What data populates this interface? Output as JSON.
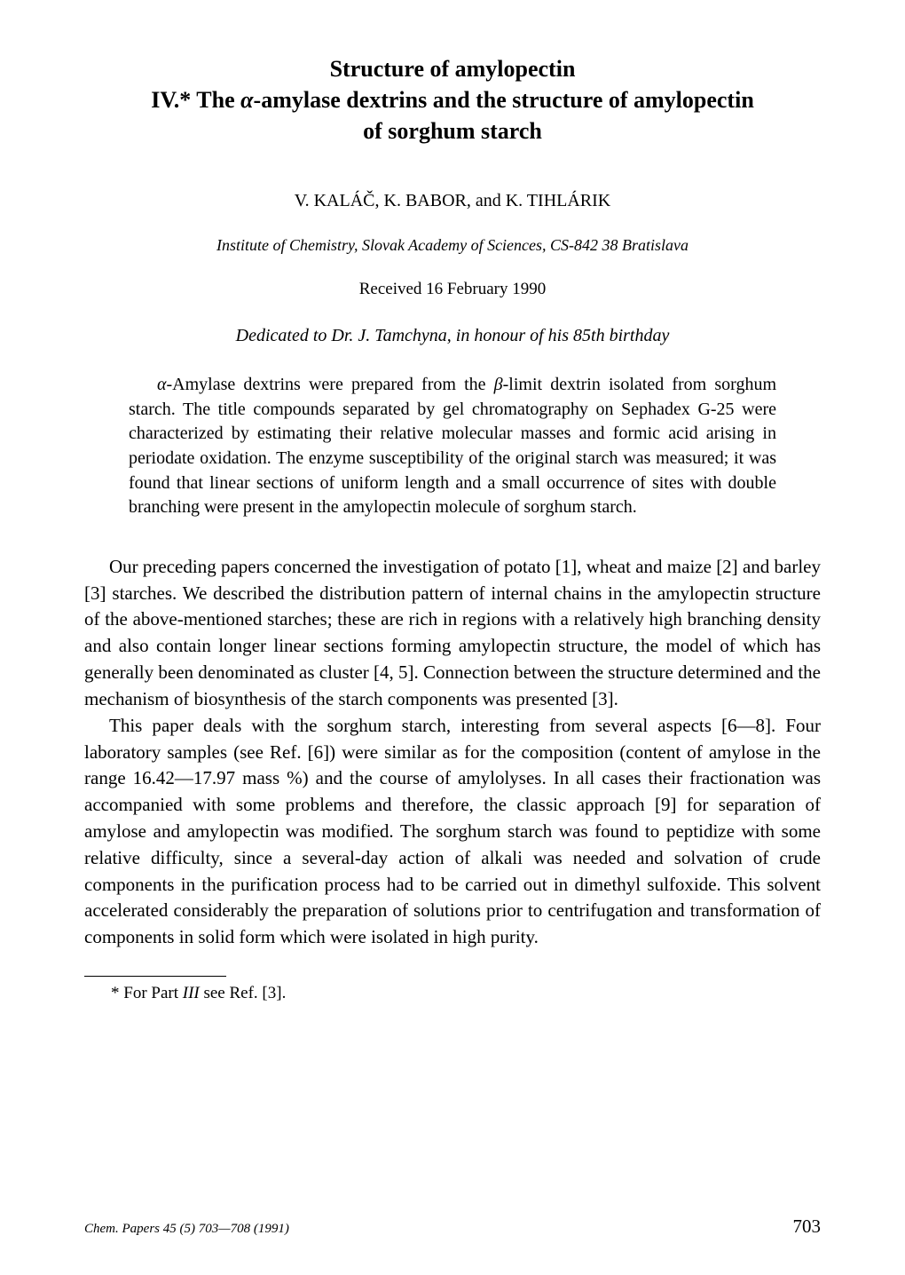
{
  "title": {
    "line1": "Structure of amylopectin",
    "line2_prefix": "IV.* The ",
    "line2_alpha": "α",
    "line2_rest": "-amylase dextrins and the structure of amylopectin",
    "line3": "of sorghum starch"
  },
  "authors": "V. KALÁČ, K. BABOR, and K. TIHLÁRIK",
  "affiliation": "Institute of Chemistry, Slovak Academy of Sciences, CS-842 38 Bratislava",
  "received": "Received 16 February 1990",
  "dedication": "Dedicated to Dr. J. Tamchyna, in honour of his 85th birthday",
  "abstract": {
    "alpha": "α",
    "text1": "-Amylase dextrins were prepared from the ",
    "beta": "β",
    "text2": "-limit dextrin isolated from sorghum starch. The title compounds separated by gel chromatography on Sephadex G-25 were characterized by estimating their relative molecular masses and formic acid arising in periodate oxidation. The enzyme susceptibility of the original starch was measured; it was found that linear sections of uniform length and a small occurrence of sites with double branching were present in the amylopectin molecule of sorghum starch."
  },
  "body": {
    "p1": "Our preceding papers concerned the investigation of potato [1], wheat and maize [2] and barley [3] starches. We described the distribution pattern of internal chains in the amylopectin structure of the above-mentioned starches; these are rich in regions with a relatively high branching density and also contain longer linear sections forming amylopectin structure, the model of which has generally been denominated as cluster [4, 5]. Connection between the structure determined and the mechanism of biosynthesis of the starch components was presented [3].",
    "p2": "This paper deals with the sorghum starch, interesting from several aspects [6—8]. Four laboratory samples (see Ref. [6]) were similar as for the composition (content of amylose in the range 16.42—17.97 mass %) and the course of amylolyses. In all cases their fractionation was accompanied with some problems and therefore, the classic approach [9] for separation of amylose and amylopectin was modified. The sorghum starch was found to peptidize with some relative difficulty, since a several-day action of alkali was needed and solvation of crude components in the purification process had to be carried out in dimethyl sulfoxide. This solvent accelerated considerably the preparation of solutions prior to centrifugation and transformation of components in solid form which were isolated in high purity."
  },
  "footnote": {
    "prefix": "* For Part ",
    "part": "III",
    "suffix": " see Ref. [3]."
  },
  "footer": {
    "journal_prefix": "Chem. Papers ",
    "journal_vol": "45",
    "journal_rest": " (5) 703—708 (1991)",
    "page": "703"
  },
  "style": {
    "page_bg": "#ffffff",
    "text_color": "#000000",
    "title_fontsize": 26,
    "authors_fontsize": 20,
    "body_fontsize": 21,
    "abstract_fontsize": 20,
    "footnote_fontsize": 19,
    "font_family": "Times New Roman"
  }
}
